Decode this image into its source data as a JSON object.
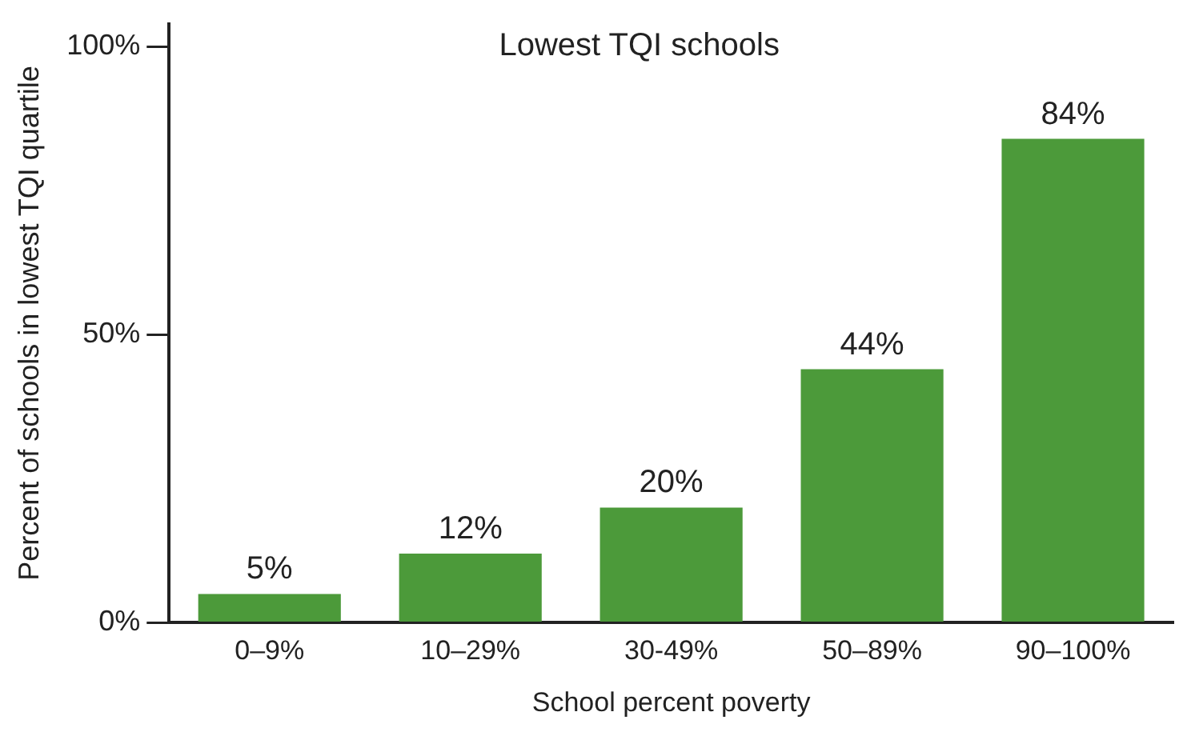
{
  "chart_data": {
    "type": "bar",
    "title": "Lowest TQI schools",
    "xlabel": "School percent poverty",
    "ylabel": "Percent of schools in lowest TQI quartile",
    "categories": [
      "0–9%",
      "10–29%",
      "30-49%",
      "50–89%",
      "90–100%"
    ],
    "values": [
      5,
      12,
      20,
      44,
      84
    ],
    "value_labels": [
      "5%",
      "12%",
      "20%",
      "44%",
      "84%"
    ],
    "color": "#4c9a3a",
    "ylim": [
      0,
      104
    ],
    "yticks": [
      {
        "value": 0,
        "label": "0%"
      },
      {
        "value": 50,
        "label": "50%"
      },
      {
        "value": 100,
        "label": "100%"
      }
    ]
  }
}
